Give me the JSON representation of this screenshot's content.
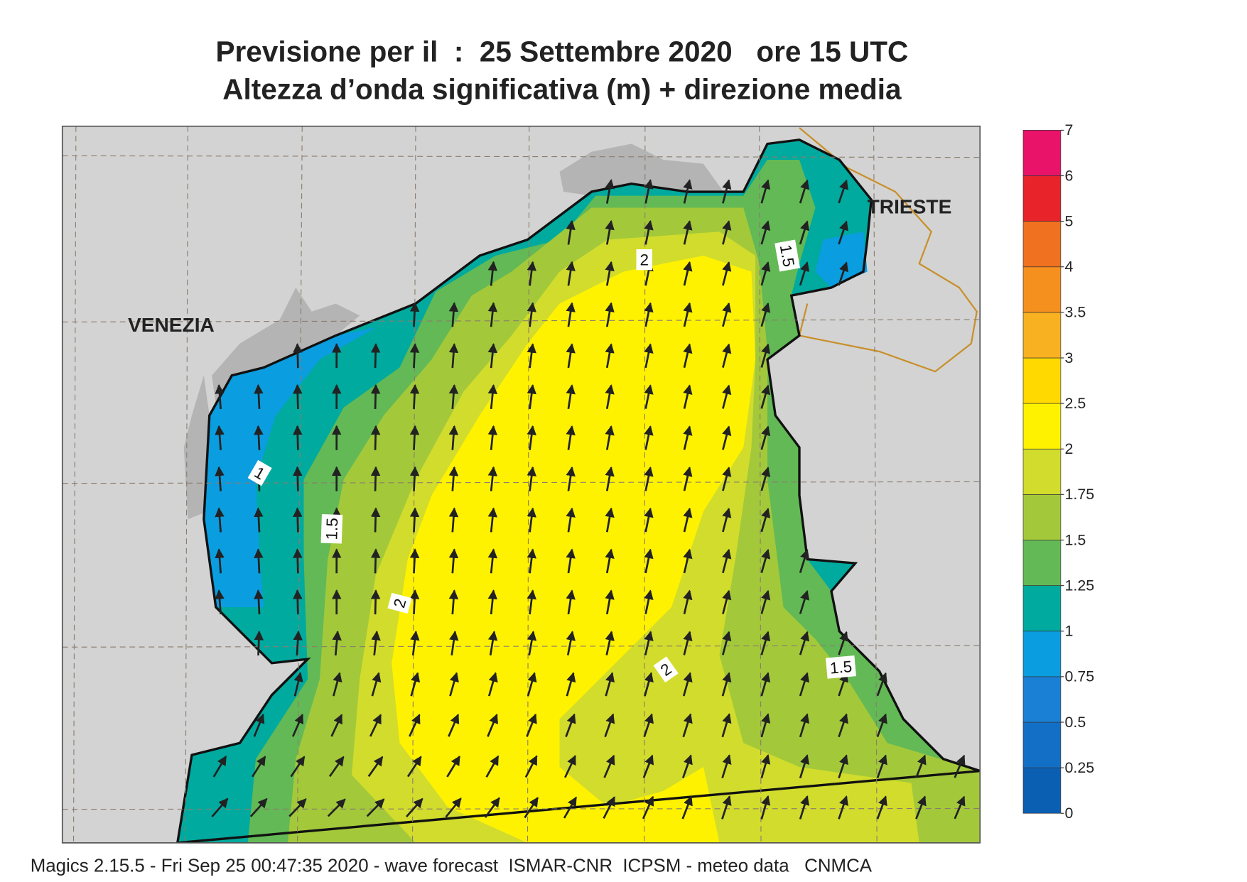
{
  "title": "Previsione per il  :  25 Settembre 2020   ore 15 UTC",
  "subtitle": "Altezza d’onda significativa (m) + direzione media",
  "places": [
    "VENEZIA",
    "TRIESTE"
  ],
  "contour_labels": [
    "2",
    "1.5",
    "1",
    "1.5",
    "2",
    "2",
    "1.5"
  ],
  "colorbar": {
    "ticks": [
      0,
      0.25,
      0.5,
      0.75,
      1,
      1.25,
      1.5,
      1.75,
      2,
      2.5,
      3,
      3.5,
      4,
      5,
      6,
      7
    ],
    "colors": [
      "#0b5fb3",
      "#136fc6",
      "#1a80d6",
      "#0a9de0",
      "#00aa9f",
      "#63b955",
      "#a3c93a",
      "#d2dc2c",
      "#fff200",
      "#ffd900",
      "#f8b120",
      "#f5901f",
      "#f0711f",
      "#e8232a",
      "#e9136a"
    ]
  },
  "footer": "Magics 2.15.5 - Fri Sep 25 00:47:35 2020 - wave forecast  ISMAR-CNR  ICPSM - meteo data   CNMCA"
}
